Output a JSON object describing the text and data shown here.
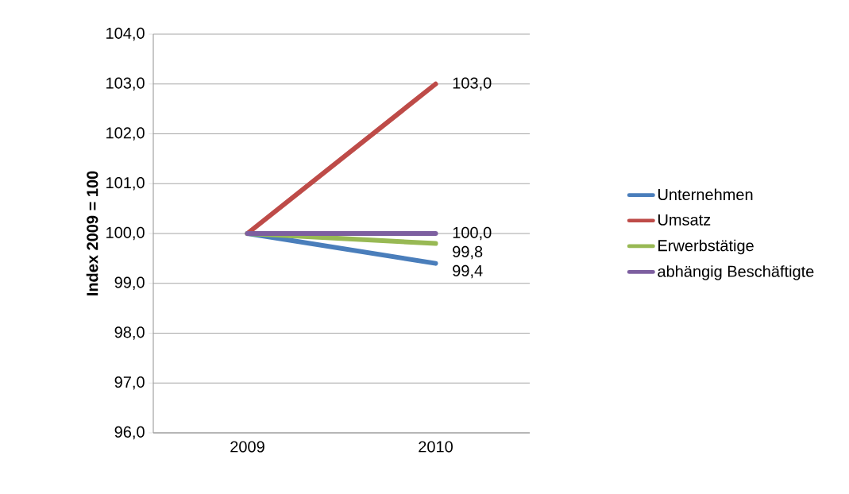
{
  "chart_data": {
    "type": "line",
    "ylabel": "Index 2009 = 100",
    "categories": [
      "2009",
      "2010"
    ],
    "series": [
      {
        "name": "Unternehmen",
        "color": "#4a7ebb",
        "values": [
          100.0,
          99.4
        ],
        "value_labels": [
          null,
          "99,4"
        ]
      },
      {
        "name": "Umsatz",
        "color": "#be4b48",
        "values": [
          100.0,
          103.0
        ],
        "value_labels": [
          null,
          "103,0"
        ]
      },
      {
        "name": "Erwerbstätige",
        "color": "#98b954",
        "values": [
          100.0,
          99.8
        ],
        "value_labels": [
          null,
          "99,8"
        ]
      },
      {
        "name": "abhängig Beschäftigte",
        "color": "#7d5fa0",
        "values": [
          100.0,
          100.0
        ],
        "value_labels": [
          null,
          "100,0"
        ]
      }
    ],
    "ylim": [
      96,
      104
    ],
    "yticks": [
      {
        "value": 96,
        "label": "96,0"
      },
      {
        "value": 97,
        "label": "97,0"
      },
      {
        "value": 98,
        "label": "98,0"
      },
      {
        "value": 99,
        "label": "99,0"
      },
      {
        "value": 100,
        "label": "100,0"
      },
      {
        "value": 101,
        "label": "101,0"
      },
      {
        "value": 102,
        "label": "102,0"
      },
      {
        "value": 103,
        "label": "103,0"
      },
      {
        "value": 104,
        "label": "104,0"
      }
    ],
    "grid": "y",
    "legend": "right",
    "marker": "none",
    "line_style": "solid"
  }
}
